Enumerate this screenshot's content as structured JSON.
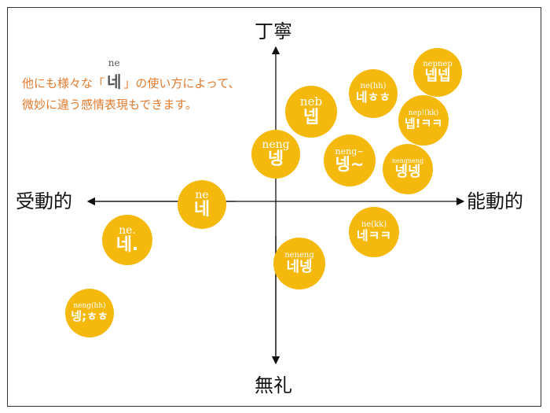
{
  "axes": {
    "top": "丁寧",
    "bottom": "無礼",
    "left": "受動的",
    "right": "能動的"
  },
  "note": {
    "line1_before": "他にも様々な「",
    "ruby": "ne",
    "glyph": "네",
    "line1_after": "」の使い方によって、",
    "line2": "微妙に違う感情表現もできます。"
  },
  "bubbles": [
    {
      "romaji": "ne",
      "hangul": "네"
    },
    {
      "romaji": "ne.",
      "hangul": "네."
    },
    {
      "romaji": "neng(hh)",
      "hangul": "넹;ㅎㅎ"
    },
    {
      "romaji": "neng",
      "hangul": "넹"
    },
    {
      "romaji": "neb",
      "hangul": "넵"
    },
    {
      "romaji": "ne(hh)",
      "hangul": "네ㅎㅎ"
    },
    {
      "romaji": "nepnep",
      "hangul": "넵넵"
    },
    {
      "romaji": "nep!(kk)",
      "hangul": "넵!ㅋㅋ"
    },
    {
      "romaji": "neng~",
      "hangul": "넹~"
    },
    {
      "romaji": "nengneng",
      "hangul": "넹넹"
    },
    {
      "romaji": "ne(kk)",
      "hangul": "네ㅋㅋ"
    },
    {
      "romaji": "neneng",
      "hangul": "네넹"
    }
  ],
  "colors": {
    "bubble": "#f5b90e",
    "note_text": "#e07b2e"
  }
}
